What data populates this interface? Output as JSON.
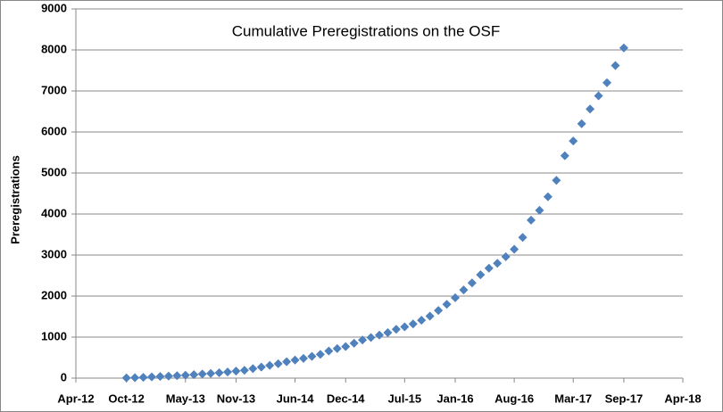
{
  "chart_data": {
    "type": "scatter",
    "title": "Cumulative Preregistrations on the OSF",
    "ylabel": "Preregistrations",
    "x": [
      "2012-10",
      "2012-11",
      "2012-12",
      "2013-01",
      "2013-02",
      "2013-03",
      "2013-04",
      "2013-05",
      "2013-06",
      "2013-07",
      "2013-08",
      "2013-09",
      "2013-10",
      "2013-11",
      "2013-12",
      "2014-01",
      "2014-02",
      "2014-03",
      "2014-04",
      "2014-05",
      "2014-06",
      "2014-07",
      "2014-08",
      "2014-09",
      "2014-10",
      "2014-11",
      "2014-12",
      "2015-01",
      "2015-02",
      "2015-03",
      "2015-04",
      "2015-05",
      "2015-06",
      "2015-07",
      "2015-08",
      "2015-09",
      "2015-10",
      "2015-11",
      "2015-12",
      "2016-01",
      "2016-02",
      "2016-03",
      "2016-04",
      "2016-05",
      "2016-06",
      "2016-07",
      "2016-08",
      "2016-09",
      "2016-10",
      "2016-11",
      "2016-12",
      "2017-01",
      "2017-02",
      "2017-03",
      "2017-04",
      "2017-05",
      "2017-06",
      "2017-07",
      "2017-08",
      "2017-09"
    ],
    "values": [
      5,
      10,
      20,
      30,
      40,
      50,
      60,
      70,
      85,
      100,
      115,
      130,
      150,
      170,
      190,
      230,
      270,
      310,
      350,
      400,
      440,
      480,
      530,
      580,
      660,
      720,
      770,
      850,
      930,
      990,
      1050,
      1110,
      1190,
      1250,
      1320,
      1410,
      1510,
      1650,
      1800,
      1960,
      2150,
      2320,
      2520,
      2680,
      2800,
      2960,
      3140,
      3430,
      3850,
      4090,
      4420,
      4820,
      5420,
      5780,
      6200,
      6560,
      6880,
      7200,
      7620,
      8050
    ],
    "color": "#4f81bd",
    "xlim": [
      "2012-04",
      "2018-04"
    ],
    "xticks": [
      {
        "value": "2012-04",
        "label": "Apr-12"
      },
      {
        "value": "2012-10",
        "label": "Oct-12"
      },
      {
        "value": "2013-05",
        "label": "May-13"
      },
      {
        "value": "2013-11",
        "label": "Nov-13"
      },
      {
        "value": "2014-06",
        "label": "Jun-14"
      },
      {
        "value": "2014-12",
        "label": "Dec-14"
      },
      {
        "value": "2015-07",
        "label": "Jul-15"
      },
      {
        "value": "2016-01",
        "label": "Jan-16"
      },
      {
        "value": "2016-08",
        "label": "Aug-16"
      },
      {
        "value": "2017-03",
        "label": "Mar-17"
      },
      {
        "value": "2017-09",
        "label": "Sep-17"
      },
      {
        "value": "2018-04",
        "label": "Apr-18"
      }
    ],
    "ylim": [
      0,
      9000
    ],
    "yticks": [
      0,
      1000,
      2000,
      3000,
      4000,
      5000,
      6000,
      7000,
      8000,
      9000
    ],
    "grid": true
  }
}
